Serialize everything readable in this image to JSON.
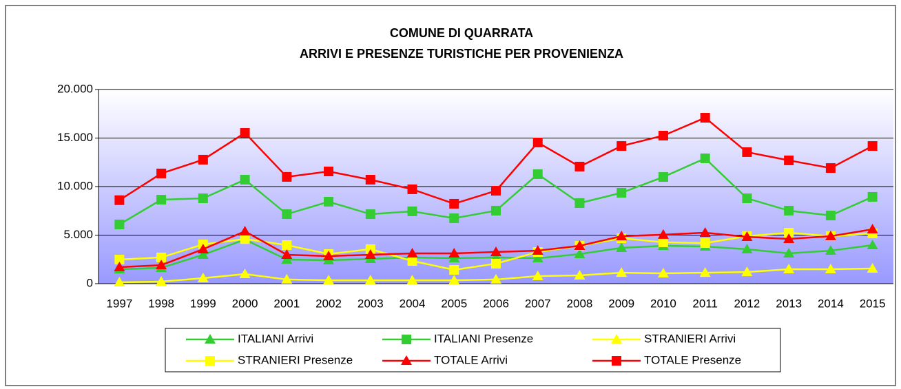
{
  "chart_data": {
    "type": "line",
    "title": [
      "COMUNE DI QUARRATA",
      "ARRIVI E PRESENZE TURISTICHE PER PROVENIENZA"
    ],
    "categories": [
      "1997",
      "1998",
      "1999",
      "2000",
      "2001",
      "2002",
      "2003",
      "2004",
      "2005",
      "2006",
      "2007",
      "2008",
      "2009",
      "2010",
      "2011",
      "2012",
      "2013",
      "2014",
      "2015"
    ],
    "ylim": [
      0,
      20000
    ],
    "yticks": [
      0,
      {
        "value": 5000,
        "label": "5.000"
      },
      {
        "value": 10000,
        "label": "10.000"
      },
      {
        "value": 15000,
        "label": "15.000"
      },
      {
        "value": 20000,
        "label": "20.000"
      }
    ],
    "grid": true,
    "legend": "bottom",
    "series": [
      {
        "name": "ITALIANI Arrivi",
        "color": "#33cc33",
        "marker": "triangle",
        "values": [
          1490,
          1630,
          2980,
          4540,
          2480,
          2410,
          2550,
          2700,
          2620,
          2700,
          2620,
          3050,
          3690,
          3900,
          3830,
          3550,
          3120,
          3400,
          3970
        ]
      },
      {
        "name": "ITALIANI Presenze",
        "color": "#33cc33",
        "marker": "square",
        "values": [
          6100,
          8650,
          8790,
          10710,
          7160,
          8440,
          7160,
          7450,
          6740,
          7520,
          11280,
          8300,
          9360,
          10990,
          12910,
          8790,
          7520,
          7020,
          8940
        ]
      },
      {
        "name": "STRANIERI Arrivi",
        "color": "#ffff00",
        "marker": "triangle",
        "values": [
          140,
          210,
          570,
          990,
          430,
          350,
          350,
          350,
          350,
          430,
          780,
          850,
          1130,
          1060,
          1130,
          1200,
          1490,
          1490,
          1560
        ]
      },
      {
        "name": "STRANIERI Presenze",
        "color": "#ffff00",
        "marker": "square",
        "values": [
          2480,
          2700,
          4040,
          4600,
          3970,
          3050,
          3550,
          2340,
          1420,
          2060,
          3260,
          3900,
          4680,
          4260,
          4180,
          4890,
          5250,
          4890,
          5180
        ]
      },
      {
        "name": "TOTALE Arrivi",
        "color": "#ff0000",
        "marker": "triangle",
        "values": [
          1700,
          1910,
          3550,
          5390,
          2980,
          2840,
          2980,
          3120,
          3120,
          3260,
          3400,
          3900,
          4890,
          5040,
          5250,
          4820,
          4610,
          4890,
          5600
        ]
      },
      {
        "name": "TOTALE Presenze",
        "color": "#ff0000",
        "marker": "square",
        "values": [
          8600,
          11350,
          12770,
          15530,
          11000,
          11560,
          10710,
          9720,
          8230,
          9570,
          14540,
          12060,
          14180,
          15250,
          17090,
          13550,
          12700,
          11910,
          14180
        ]
      }
    ]
  }
}
